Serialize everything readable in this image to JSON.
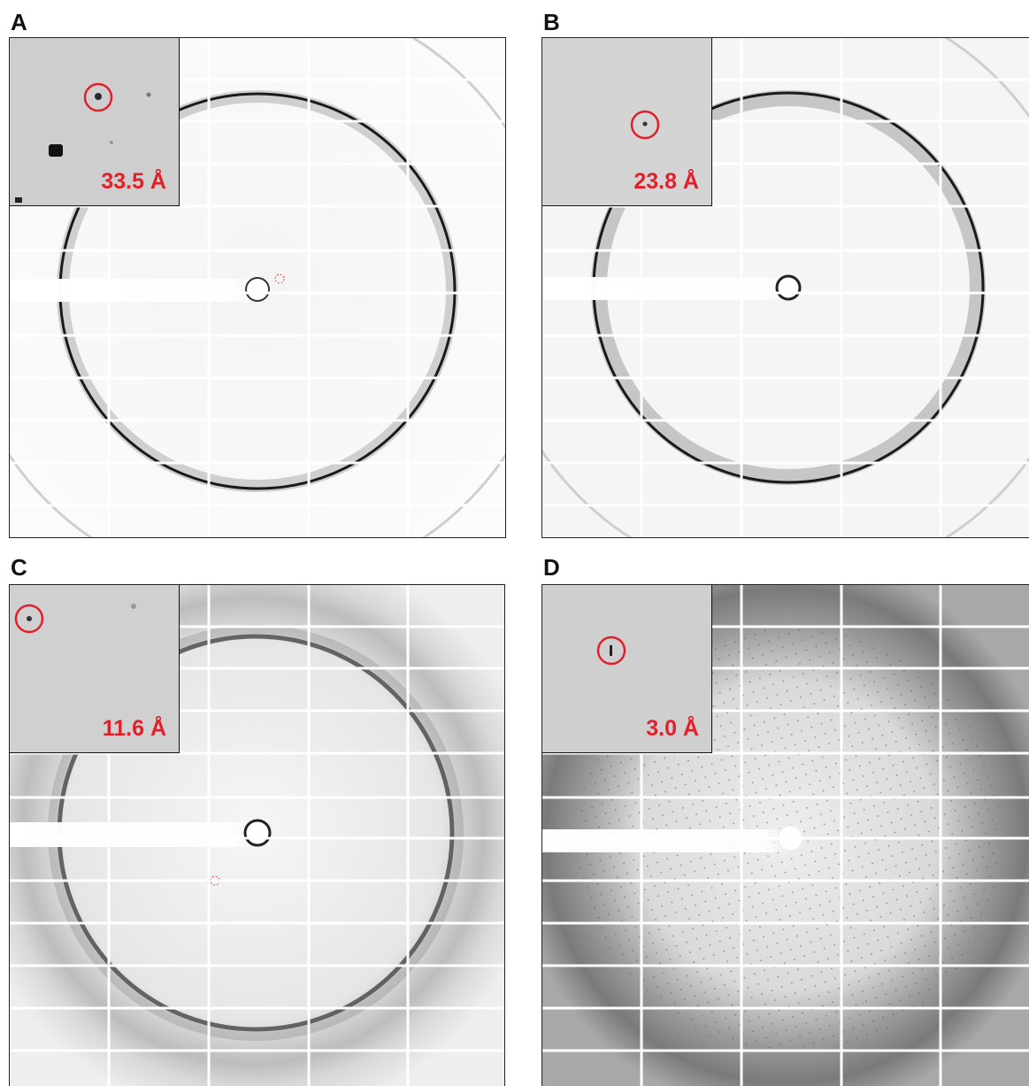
{
  "panels": [
    {
      "id": "A",
      "label": "A",
      "resolution": "33.5 Å",
      "ring_style": "sharp"
    },
    {
      "id": "B",
      "label": "B",
      "resolution": "23.8 Å",
      "ring_style": "sharp"
    },
    {
      "id": "C",
      "label": "C",
      "resolution": "11.6 Å",
      "ring_style": "diffuse"
    },
    {
      "id": "D",
      "label": "D",
      "resolution": "3.0 Å",
      "ring_style": "broad"
    }
  ],
  "colors": {
    "annotation": "#e0202a",
    "ring": "#1a1a1a",
    "background": "#f2f2f2"
  }
}
